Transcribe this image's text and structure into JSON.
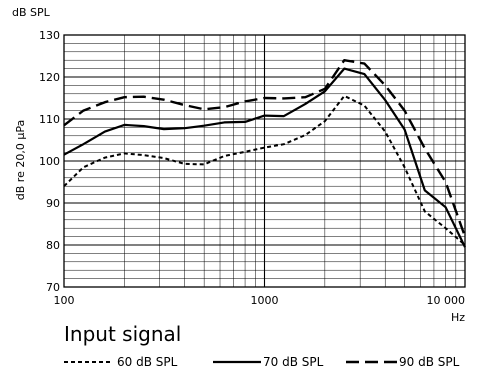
{
  "chart_data": {
    "type": "line",
    "ylabel": "dB re 20,0 µPa",
    "yunit": "dB SPL",
    "xunit": "Hz",
    "xscale": "log",
    "xlim": [
      100,
      10000
    ],
    "ylim": [
      70,
      130
    ],
    "yticks": [
      70,
      80,
      90,
      100,
      110,
      120,
      130
    ],
    "xticks": [
      {
        "value": 100,
        "label": "100"
      },
      {
        "value": 1000,
        "label": "1000"
      },
      {
        "value": 10000,
        "label": "10 000"
      }
    ],
    "grid": true,
    "legend_title": "Input signal",
    "legend_placement": "bottom",
    "series": [
      {
        "name": "60 dB SPL",
        "style": "dotted",
        "x": [
          100,
          125,
          160,
          200,
          250,
          315,
          400,
          500,
          630,
          800,
          1000,
          1250,
          1600,
          2000,
          2500,
          3150,
          4000,
          5000,
          6300,
          8000,
          10000
        ],
        "y": [
          94,
          98.5,
          100.8,
          101.8,
          101.4,
          100.7,
          99.3,
          99.2,
          101.2,
          102.2,
          103.2,
          104,
          106.2,
          109.5,
          115.5,
          113.2,
          107,
          98.5,
          88,
          84,
          80
        ]
      },
      {
        "name": "70 dB SPL",
        "style": "solid",
        "x": [
          100,
          125,
          160,
          200,
          250,
          315,
          400,
          500,
          630,
          800,
          1000,
          1250,
          1600,
          2000,
          2500,
          3150,
          4000,
          5000,
          6300,
          8000,
          10000
        ],
        "y": [
          101.5,
          104,
          107,
          108.6,
          108.3,
          107.6,
          107.8,
          108.4,
          109.2,
          109.3,
          110.8,
          110.7,
          113.6,
          116.6,
          122,
          120.7,
          114.5,
          107.5,
          93,
          89,
          79.5
        ]
      },
      {
        "name": "90 dB SPL",
        "style": "dashed",
        "x": [
          100,
          125,
          160,
          200,
          250,
          315,
          400,
          500,
          630,
          800,
          1000,
          1250,
          1600,
          2000,
          2500,
          3150,
          4000,
          5000,
          6300,
          8000,
          10000
        ],
        "y": [
          108.5,
          112,
          114,
          115.2,
          115.3,
          114.6,
          113.3,
          112.3,
          112.8,
          114.2,
          115,
          114.9,
          115.2,
          117.2,
          124,
          123.2,
          118,
          112,
          103,
          95,
          82
        ]
      }
    ]
  }
}
